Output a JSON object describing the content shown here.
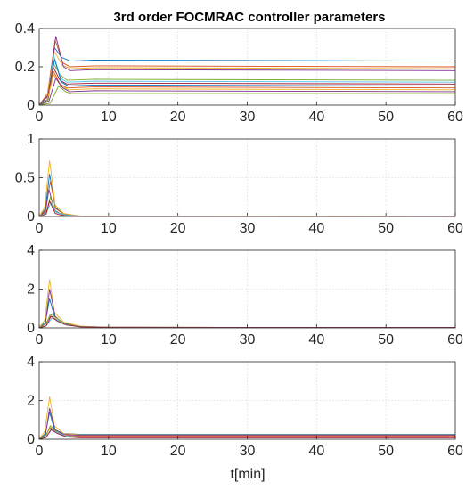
{
  "figure": {
    "title": "3rd order FOCMRAC controller parameters",
    "xlabel": "t[min]"
  },
  "chart_data": [
    {
      "type": "line",
      "xlim": [
        0,
        60
      ],
      "ylim": [
        0,
        0.4
      ],
      "xticks": [
        0,
        10,
        20,
        30,
        40,
        50,
        60
      ],
      "yticks": [
        0,
        0.2,
        0.4
      ],
      "grid": true,
      "colors": [
        "#0072BD",
        "#D95319",
        "#EDB120",
        "#7E2F8E",
        "#77AC30",
        "#4DBEEE",
        "#A2142F"
      ],
      "series": [
        {
          "x": [
            0,
            1.2,
            2.2,
            3.2,
            4.5,
            8,
            60
          ],
          "y": [
            0,
            0.05,
            0.3,
            0.25,
            0.23,
            0.235,
            0.23
          ]
        },
        {
          "x": [
            0,
            1.2,
            2.3,
            3.4,
            4.5,
            8,
            60
          ],
          "y": [
            0,
            0.06,
            0.34,
            0.22,
            0.2,
            0.205,
            0.2
          ]
        },
        {
          "x": [
            0,
            1.1,
            2.2,
            3.3,
            4.5,
            8,
            60
          ],
          "y": [
            0,
            0.04,
            0.28,
            0.21,
            0.19,
            0.195,
            0.19
          ]
        },
        {
          "x": [
            0,
            1.3,
            2.4,
            3.5,
            4.5,
            8,
            60
          ],
          "y": [
            0,
            0.05,
            0.36,
            0.2,
            0.18,
            0.185,
            0.18
          ]
        },
        {
          "x": [
            0,
            1.2,
            2.0,
            3.0,
            4.0,
            8,
            60
          ],
          "y": [
            0,
            0.02,
            0.22,
            0.16,
            0.13,
            0.135,
            0.13
          ]
        },
        {
          "x": [
            0,
            1.2,
            2.1,
            3.1,
            4.0,
            8,
            60
          ],
          "y": [
            0,
            0.03,
            0.26,
            0.14,
            0.12,
            0.125,
            0.12
          ]
        },
        {
          "x": [
            0,
            1.1,
            2.0,
            3.0,
            4.0,
            8,
            60
          ],
          "y": [
            0,
            0.02,
            0.2,
            0.13,
            0.11,
            0.115,
            0.11
          ]
        },
        {
          "x": [
            0,
            1.3,
            2.2,
            3.2,
            4.2,
            8,
            60
          ],
          "y": [
            0,
            0.03,
            0.24,
            0.12,
            0.1,
            0.105,
            0.1
          ]
        },
        {
          "x": [
            0,
            1.2,
            2.0,
            3.0,
            4.0,
            8,
            60
          ],
          "y": [
            0,
            0.02,
            0.18,
            0.11,
            0.09,
            0.095,
            0.09
          ]
        },
        {
          "x": [
            0,
            1.1,
            2.1,
            3.1,
            4.2,
            8,
            60
          ],
          "y": [
            0,
            0.02,
            0.16,
            0.1,
            0.08,
            0.085,
            0.08
          ]
        },
        {
          "x": [
            0,
            1.4,
            2.4,
            3.4,
            4.4,
            8,
            60
          ],
          "y": [
            0,
            0.02,
            0.14,
            0.09,
            0.07,
            0.075,
            0.07
          ]
        },
        {
          "x": [
            0,
            1.6,
            2.8,
            3.8,
            4.6,
            8,
            60
          ],
          "y": [
            0,
            0.01,
            0.1,
            0.07,
            0.06,
            0.06,
            0.06
          ]
        }
      ]
    },
    {
      "type": "line",
      "xlim": [
        0,
        60
      ],
      "ylim": [
        0,
        1
      ],
      "xticks": [
        0,
        10,
        20,
        30,
        40,
        50,
        60
      ],
      "yticks": [
        0,
        0.5,
        1
      ],
      "grid": true,
      "colors": [
        "#0072BD",
        "#D95319",
        "#EDB120",
        "#7E2F8E",
        "#77AC30",
        "#4DBEEE",
        "#A2142F"
      ],
      "series": [
        {
          "x": [
            0,
            0.9,
            1.5,
            2.3,
            3.5,
            6,
            60
          ],
          "y": [
            0,
            0.1,
            0.55,
            0.12,
            0.03,
            0.005,
            0
          ]
        },
        {
          "x": [
            0,
            0.9,
            1.6,
            2.4,
            3.6,
            6,
            60
          ],
          "y": [
            0,
            0.08,
            0.45,
            0.1,
            0.03,
            0.005,
            0
          ]
        },
        {
          "x": [
            0,
            0.8,
            1.5,
            2.3,
            3.5,
            6,
            60
          ],
          "y": [
            0,
            0.12,
            0.72,
            0.15,
            0.04,
            0.005,
            0
          ]
        },
        {
          "x": [
            0,
            0.9,
            1.4,
            2.2,
            3.4,
            6,
            60
          ],
          "y": [
            0,
            0.06,
            0.35,
            0.08,
            0.02,
            0.004,
            0
          ]
        },
        {
          "x": [
            0,
            1.0,
            1.6,
            2.4,
            3.6,
            6,
            60
          ],
          "y": [
            0,
            0.05,
            0.25,
            0.06,
            0.02,
            0.004,
            0
          ]
        },
        {
          "x": [
            0,
            1.0,
            1.7,
            2.5,
            3.8,
            6,
            60
          ],
          "y": [
            0,
            0.04,
            0.18,
            0.05,
            0.02,
            0.003,
            0
          ]
        },
        {
          "x": [
            0,
            1.0,
            1.5,
            2.3,
            3.5,
            6,
            60
          ],
          "y": [
            0,
            0.03,
            0.2,
            0.04,
            0.01,
            0.002,
            0
          ]
        }
      ]
    },
    {
      "type": "line",
      "xlim": [
        0,
        60
      ],
      "ylim": [
        0,
        4
      ],
      "xticks": [
        0,
        10,
        20,
        30,
        40,
        50,
        60
      ],
      "yticks": [
        0,
        2,
        4
      ],
      "grid": true,
      "colors": [
        "#0072BD",
        "#D95319",
        "#EDB120",
        "#7E2F8E",
        "#77AC30",
        "#4DBEEE",
        "#A2142F"
      ],
      "series": [
        {
          "x": [
            0,
            0.9,
            1.5,
            2.2,
            3.5,
            6,
            10,
            60
          ],
          "y": [
            0,
            0.3,
            1.5,
            0.6,
            0.25,
            0.08,
            0.03,
            0.02
          ]
        },
        {
          "x": [
            0,
            0.9,
            1.6,
            2.4,
            3.6,
            6,
            10,
            60
          ],
          "y": [
            0,
            0.2,
            0.6,
            0.45,
            0.2,
            0.06,
            0.03,
            0.02
          ]
        },
        {
          "x": [
            0,
            0.8,
            1.5,
            2.2,
            3.5,
            6,
            10,
            60
          ],
          "y": [
            0,
            0.4,
            2.5,
            0.8,
            0.3,
            0.08,
            0.03,
            0.02
          ]
        },
        {
          "x": [
            0,
            0.9,
            1.5,
            2.3,
            3.5,
            6,
            10,
            60
          ],
          "y": [
            0,
            0.2,
            2.0,
            0.6,
            0.2,
            0.06,
            0.03,
            0.02
          ]
        },
        {
          "x": [
            0,
            1.0,
            1.6,
            2.5,
            3.8,
            6,
            10,
            60
          ],
          "y": [
            0,
            0.2,
            0.7,
            0.5,
            0.2,
            0.06,
            0.03,
            0.02
          ]
        },
        {
          "x": [
            0,
            1.0,
            1.8,
            2.6,
            4.0,
            6,
            10,
            60
          ],
          "y": [
            0,
            0.1,
            0.5,
            0.4,
            0.15,
            0.05,
            0.02,
            0.02
          ]
        },
        {
          "x": [
            0,
            1.0,
            1.7,
            2.6,
            3.9,
            6,
            10,
            60
          ],
          "y": [
            0,
            0.1,
            0.6,
            0.35,
            0.15,
            0.05,
            0.02,
            0.02
          ]
        }
      ]
    },
    {
      "type": "line",
      "xlim": [
        0,
        60
      ],
      "ylim": [
        0,
        4
      ],
      "xticks": [
        0,
        10,
        20,
        30,
        40,
        50,
        60
      ],
      "yticks": [
        0,
        2,
        4
      ],
      "grid": true,
      "colors": [
        "#0072BD",
        "#D95319",
        "#EDB120",
        "#7E2F8E",
        "#77AC30",
        "#4DBEEE",
        "#A2142F"
      ],
      "series": [
        {
          "x": [
            0,
            0.9,
            1.5,
            2.2,
            3.5,
            6,
            10,
            60
          ],
          "y": [
            0,
            0.3,
            1.4,
            0.5,
            0.3,
            0.25,
            0.25,
            0.25
          ]
        },
        {
          "x": [
            0,
            0.9,
            1.6,
            2.4,
            3.6,
            6,
            10,
            60
          ],
          "y": [
            0,
            0.2,
            0.6,
            0.4,
            0.2,
            0.15,
            0.15,
            0.15
          ]
        },
        {
          "x": [
            0,
            0.8,
            1.5,
            2.2,
            3.5,
            6,
            10,
            60
          ],
          "y": [
            0,
            0.4,
            2.2,
            0.7,
            0.3,
            0.22,
            0.22,
            0.22
          ]
        },
        {
          "x": [
            0,
            0.9,
            1.5,
            2.3,
            3.5,
            6,
            10,
            60
          ],
          "y": [
            0,
            0.2,
            1.6,
            0.5,
            0.25,
            0.2,
            0.2,
            0.2
          ]
        },
        {
          "x": [
            0,
            1.0,
            1.6,
            2.5,
            3.8,
            6,
            10,
            60
          ],
          "y": [
            0,
            0.2,
            0.7,
            0.4,
            0.15,
            0.1,
            0.1,
            0.1
          ]
        },
        {
          "x": [
            0,
            1.0,
            1.8,
            2.6,
            4.0,
            6,
            10,
            60
          ],
          "y": [
            0,
            0.1,
            0.5,
            0.35,
            0.15,
            0.12,
            0.12,
            0.12
          ]
        },
        {
          "x": [
            0,
            1.0,
            1.7,
            2.6,
            3.9,
            6,
            10,
            60
          ],
          "y": [
            0,
            0.1,
            0.5,
            0.3,
            0.12,
            0.08,
            0.08,
            0.08
          ]
        }
      ]
    }
  ]
}
